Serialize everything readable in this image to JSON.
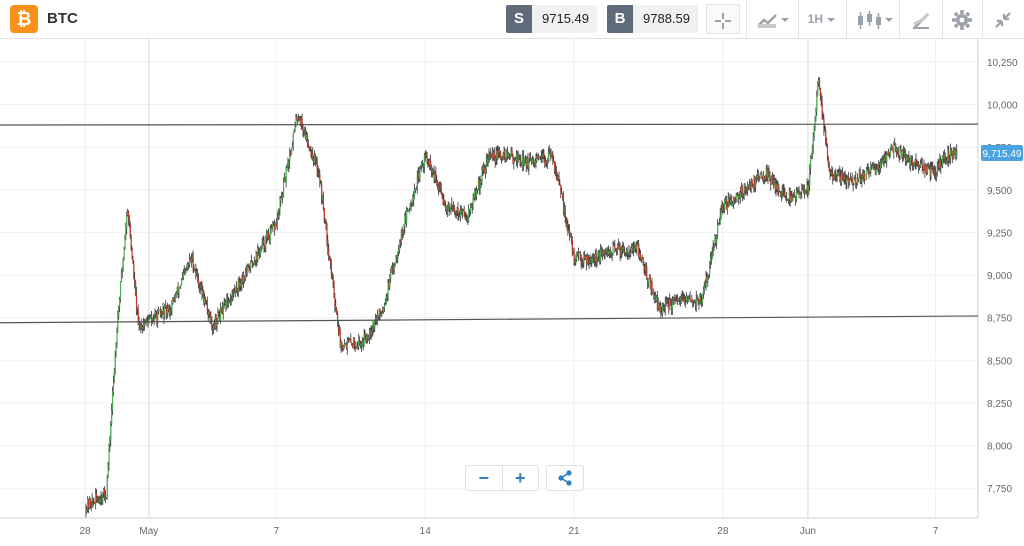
{
  "header": {
    "symbol": "BTC",
    "logo_glyph": "₿",
    "sell_tag": "S",
    "sell_price": "9715.49",
    "buy_tag": "B",
    "buy_price": "9788.59",
    "interval": "1H",
    "icons": [
      "crosshair-icon",
      "chart-type-icon",
      "interval-dropdown",
      "indicators-icon",
      "drawing-icon",
      "settings-icon",
      "collapse-icon"
    ]
  },
  "controls": {
    "zoom_out": "−",
    "zoom_in": "+"
  },
  "chart_data": {
    "type": "candlestick",
    "symbol": "BTC",
    "interval": "1H",
    "x_labels": [
      "28",
      "May",
      "7",
      "14",
      "21",
      "28",
      "Jun",
      "7"
    ],
    "y_ticks": [
      7750,
      8000,
      8250,
      8500,
      8750,
      9000,
      9250,
      9500,
      9750,
      10000,
      10250
    ],
    "y_tick_labels": [
      "7,750",
      "8,000",
      "8,250",
      "8,500",
      "8,750",
      "9,000",
      "9,250",
      "9,500",
      "9,750",
      "10,000",
      "10,250"
    ],
    "ylim": [
      7575,
      10390
    ],
    "xlim": [
      "2020-04-24",
      "2020-06-09"
    ],
    "current_price": 9715.49,
    "current_price_label": "9,715.49",
    "grid": true,
    "trend_lines": [
      {
        "from": [
          "2020-04-24",
          9880
        ],
        "to": [
          "2020-06-09",
          9885
        ]
      },
      {
        "from": [
          "2020-04-24",
          8720
        ],
        "to": [
          "2020-06-09",
          8760
        ]
      }
    ],
    "price_path": [
      [
        "2020-04-28",
        7640
      ],
      [
        "2020-04-29",
        7720
      ],
      [
        "2020-04-29.5",
        8700
      ],
      [
        "2020-04-30",
        9400
      ],
      [
        "2020-04-30.5",
        8700
      ],
      [
        "2020-05-02",
        8800
      ],
      [
        "2020-05-03",
        9100
      ],
      [
        "2020-05-04",
        8700
      ],
      [
        "2020-05-05",
        8900
      ],
      [
        "2020-05-06",
        9100
      ],
      [
        "2020-05-07",
        9300
      ],
      [
        "2020-05-08",
        9950
      ],
      [
        "2020-05-09",
        9600
      ],
      [
        "2020-05-10",
        8600
      ],
      [
        "2020-05-11",
        8600
      ],
      [
        "2020-05-12",
        8800
      ],
      [
        "2020-05-13",
        9300
      ],
      [
        "2020-05-14",
        9700
      ],
      [
        "2020-05-15",
        9400
      ],
      [
        "2020-05-16",
        9350
      ],
      [
        "2020-05-17",
        9700
      ],
      [
        "2020-05-18",
        9700
      ],
      [
        "2020-05-19",
        9650
      ],
      [
        "2020-05-20",
        9700
      ],
      [
        "2020-05-21",
        9100
      ],
      [
        "2020-05-22",
        9100
      ],
      [
        "2020-05-23",
        9150
      ],
      [
        "2020-05-24",
        9150
      ],
      [
        "2020-05-25",
        8800
      ],
      [
        "2020-05-26",
        8850
      ],
      [
        "2020-05-27",
        8850
      ],
      [
        "2020-05-28",
        9400
      ],
      [
        "2020-05-29",
        9500
      ],
      [
        "2020-05-30",
        9600
      ],
      [
        "2020-05-31",
        9450
      ],
      [
        "2020-06-01",
        9500
      ],
      [
        "2020-06-01.5",
        10150
      ],
      [
        "2020-06-02",
        9600
      ],
      [
        "2020-06-03",
        9550
      ],
      [
        "2020-06-04",
        9600
      ],
      [
        "2020-06-05",
        9750
      ],
      [
        "2020-06-06",
        9650
      ],
      [
        "2020-06-07",
        9600
      ],
      [
        "2020-06-07.5",
        9700
      ],
      [
        "2020-06-08",
        9715
      ]
    ]
  }
}
